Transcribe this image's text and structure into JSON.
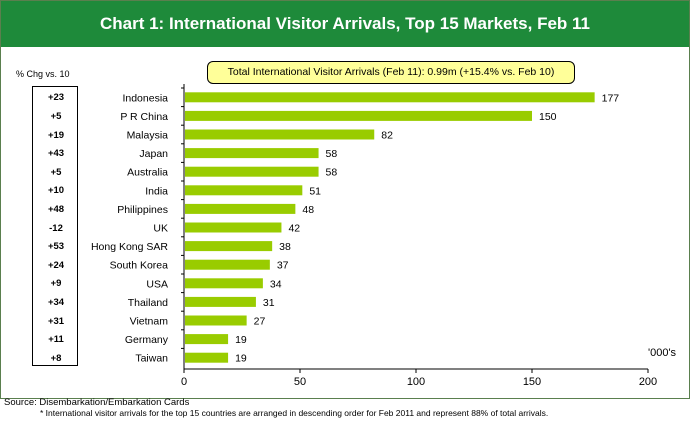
{
  "header": {
    "title": "Chart 1: International Visitor Arrivals, Top 15 Markets, Feb 11"
  },
  "pct_header": "% Chg vs. 10",
  "callout": "Total International Visitor Arrivals (Feb 11): 0.99m (+15.4% vs. Feb 10)",
  "unit_label": "'000's",
  "source": "Source: Disembarkation/Embarkation Cards",
  "footnote": "* International visitor arrivals for the top 15 countries are arranged in descending order for Feb 2011 and represent 88% of total arrivals.",
  "chart_data": {
    "type": "bar",
    "orientation": "horizontal",
    "categories": [
      "Indonesia",
      "P R China",
      "Malaysia",
      "Japan",
      "Australia",
      "India",
      "Philippines",
      "UK",
      "Hong Kong SAR",
      "South Korea",
      "USA",
      "Thailand",
      "Vietnam",
      "Germany",
      "Taiwan"
    ],
    "values": [
      177,
      150,
      82,
      58,
      58,
      51,
      48,
      42,
      38,
      37,
      34,
      31,
      27,
      19,
      19
    ],
    "pct_change": [
      "+23",
      "+5",
      "+19",
      "+43",
      "+5",
      "+10",
      "+48",
      "-12",
      "+53",
      "+24",
      "+9",
      "+34",
      "+31",
      "+11",
      "+8"
    ],
    "xlim": [
      0,
      200
    ],
    "xticks": [
      0,
      50,
      100,
      150,
      200
    ],
    "bar_color": "#99cc00",
    "grid": false
  }
}
